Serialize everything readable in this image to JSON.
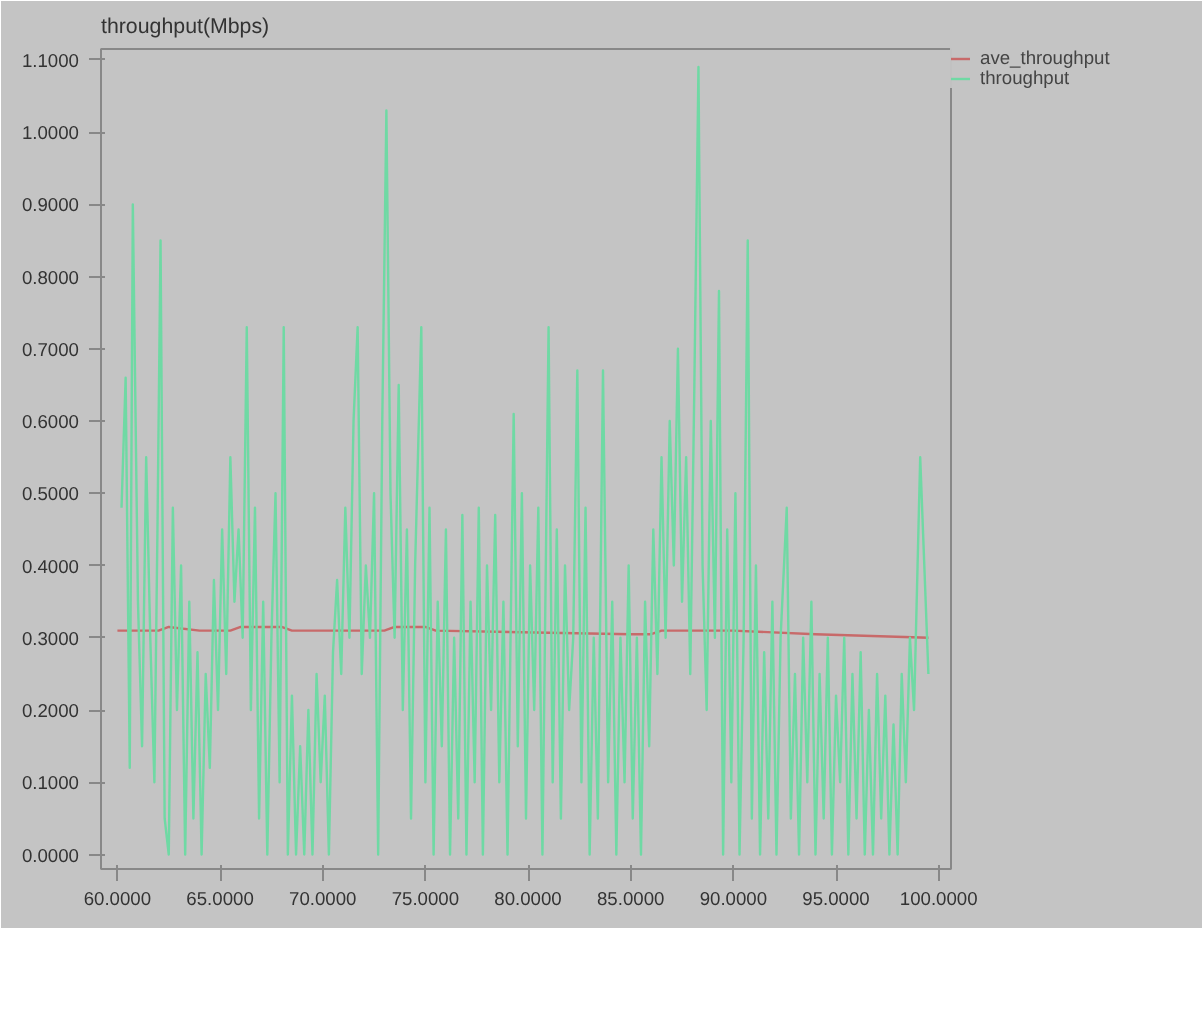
{
  "chart_data": {
    "type": "line",
    "ylabel": "throughput(Mbps)",
    "xlim": [
      59.2,
      100.6
    ],
    "ylim": [
      -0.02,
      1.115
    ],
    "xticks": [
      {
        "value": 60,
        "label": "60.0000"
      },
      {
        "value": 65,
        "label": "65.0000"
      },
      {
        "value": 70,
        "label": "70.0000"
      },
      {
        "value": 75,
        "label": "75.0000"
      },
      {
        "value": 80,
        "label": "80.0000"
      },
      {
        "value": 85,
        "label": "85.0000"
      },
      {
        "value": 90,
        "label": "90.0000"
      },
      {
        "value": 95,
        "label": "95.0000"
      },
      {
        "value": 100,
        "label": "100.0000"
      }
    ],
    "yticks": [
      {
        "value": 0,
        "label": "0.0000"
      },
      {
        "value": 0.1,
        "label": "0.1000"
      },
      {
        "value": 0.2,
        "label": "0.2000"
      },
      {
        "value": 0.3,
        "label": "0.3000"
      },
      {
        "value": 0.4,
        "label": "0.4000"
      },
      {
        "value": 0.5,
        "label": "0.5000"
      },
      {
        "value": 0.6,
        "label": "0.6000"
      },
      {
        "value": 0.7,
        "label": "0.7000"
      },
      {
        "value": 0.8,
        "label": "0.8000"
      },
      {
        "value": 0.9,
        "label": "0.9000"
      },
      {
        "value": 1.0,
        "label": "1.0000"
      },
      {
        "value": 1.1,
        "label": "1.1000"
      }
    ],
    "grid": false,
    "legend": "right",
    "marker": "none",
    "line_style": "solid",
    "series": [
      {
        "name": "ave_throughput",
        "color": "#c86a6a",
        "x": [
          60,
          62,
          62.5,
          64,
          65.5,
          66,
          68,
          68.5,
          73,
          73.5,
          75,
          75.5,
          85,
          86,
          86.5,
          90,
          94,
          99.5
        ],
        "values": [
          0.31,
          0.31,
          0.315,
          0.31,
          0.31,
          0.315,
          0.315,
          0.31,
          0.31,
          0.315,
          0.315,
          0.31,
          0.305,
          0.305,
          0.31,
          0.31,
          0.305,
          0.3
        ]
      },
      {
        "name": "throughput",
        "color": "#6fd9a4",
        "x": [
          60.2,
          60.4,
          60.6,
          60.75,
          61.0,
          61.2,
          61.4,
          61.6,
          61.8,
          61.95,
          62.1,
          62.3,
          62.5,
          62.7,
          62.9,
          63.1,
          63.3,
          63.5,
          63.7,
          63.9,
          64.1,
          64.3,
          64.5,
          64.7,
          64.9,
          65.1,
          65.3,
          65.5,
          65.7,
          65.9,
          66.1,
          66.3,
          66.5,
          66.7,
          66.9,
          67.1,
          67.3,
          67.5,
          67.7,
          67.9,
          68.1,
          68.3,
          68.5,
          68.7,
          68.9,
          69.1,
          69.3,
          69.5,
          69.7,
          69.9,
          70.1,
          70.3,
          70.5,
          70.7,
          70.9,
          71.1,
          71.3,
          71.5,
          71.7,
          71.9,
          72.1,
          72.3,
          72.5,
          72.7,
          72.9,
          73.1,
          73.3,
          73.5,
          73.7,
          73.9,
          74.1,
          74.3,
          74.5,
          74.8,
          75.0,
          75.2,
          75.4,
          75.6,
          75.8,
          76.0,
          76.2,
          76.4,
          76.6,
          76.8,
          77.0,
          77.2,
          77.4,
          77.6,
          77.8,
          78.0,
          78.2,
          78.4,
          78.6,
          78.8,
          79.0,
          79.3,
          79.5,
          79.7,
          79.9,
          80.1,
          80.3,
          80.5,
          80.7,
          81.0,
          81.2,
          81.4,
          81.6,
          81.8,
          82.0,
          82.2,
          82.4,
          82.6,
          82.8,
          83.0,
          83.2,
          83.4,
          83.65,
          83.9,
          84.1,
          84.3,
          84.5,
          84.7,
          84.9,
          85.1,
          85.3,
          85.5,
          85.7,
          85.9,
          86.1,
          86.3,
          86.5,
          86.7,
          86.9,
          87.1,
          87.3,
          87.5,
          87.7,
          87.9,
          88.1,
          88.3,
          88.5,
          88.7,
          88.9,
          89.1,
          89.3,
          89.5,
          89.7,
          89.9,
          90.1,
          90.3,
          90.5,
          90.7,
          90.9,
          91.1,
          91.3,
          91.5,
          91.7,
          91.9,
          92.1,
          92.3,
          92.6,
          92.8,
          93.0,
          93.2,
          93.4,
          93.6,
          93.8,
          94.0,
          94.2,
          94.4,
          94.6,
          94.8,
          95.0,
          95.2,
          95.4,
          95.6,
          95.8,
          96.0,
          96.2,
          96.4,
          96.6,
          96.8,
          97.0,
          97.2,
          97.4,
          97.6,
          97.8,
          98.0,
          98.2,
          98.4,
          98.6,
          98.8,
          99.1,
          99.3,
          99.5
        ],
        "values": [
          0.48,
          0.66,
          0.12,
          0.9,
          0.35,
          0.15,
          0.55,
          0.3,
          0.1,
          0.45,
          0.85,
          0.05,
          0.0,
          0.48,
          0.2,
          0.4,
          0.0,
          0.35,
          0.05,
          0.28,
          0.0,
          0.25,
          0.12,
          0.38,
          0.2,
          0.45,
          0.25,
          0.55,
          0.35,
          0.45,
          0.3,
          0.73,
          0.2,
          0.48,
          0.05,
          0.35,
          0.0,
          0.3,
          0.5,
          0.1,
          0.73,
          0.0,
          0.22,
          0.0,
          0.15,
          0.0,
          0.2,
          0.0,
          0.25,
          0.1,
          0.22,
          0.0,
          0.28,
          0.38,
          0.25,
          0.48,
          0.3,
          0.6,
          0.73,
          0.25,
          0.4,
          0.3,
          0.5,
          0.0,
          0.6,
          1.03,
          0.5,
          0.3,
          0.65,
          0.2,
          0.45,
          0.05,
          0.4,
          0.73,
          0.1,
          0.48,
          0.0,
          0.35,
          0.15,
          0.45,
          0.0,
          0.3,
          0.05,
          0.47,
          0.0,
          0.35,
          0.1,
          0.48,
          0.0,
          0.4,
          0.2,
          0.47,
          0.1,
          0.35,
          0.0,
          0.61,
          0.15,
          0.5,
          0.05,
          0.4,
          0.2,
          0.48,
          0.0,
          0.73,
          0.1,
          0.45,
          0.05,
          0.4,
          0.2,
          0.3,
          0.67,
          0.1,
          0.48,
          0.0,
          0.3,
          0.05,
          0.67,
          0.1,
          0.35,
          0.0,
          0.3,
          0.1,
          0.4,
          0.05,
          0.3,
          0.0,
          0.35,
          0.15,
          0.45,
          0.25,
          0.55,
          0.3,
          0.6,
          0.4,
          0.7,
          0.35,
          0.55,
          0.25,
          0.65,
          1.09,
          0.4,
          0.2,
          0.6,
          0.3,
          0.78,
          0.0,
          0.45,
          0.1,
          0.5,
          0.0,
          0.3,
          0.85,
          0.05,
          0.4,
          0.0,
          0.28,
          0.05,
          0.35,
          0.0,
          0.3,
          0.48,
          0.05,
          0.25,
          0.0,
          0.3,
          0.1,
          0.35,
          0.0,
          0.25,
          0.05,
          0.3,
          0.0,
          0.22,
          0.1,
          0.3,
          0.0,
          0.25,
          0.05,
          0.28,
          0.0,
          0.2,
          0.0,
          0.25,
          0.05,
          0.22,
          0.0,
          0.18,
          0.0,
          0.25,
          0.1,
          0.3,
          0.2,
          0.55,
          0.4,
          0.25
        ]
      }
    ]
  }
}
